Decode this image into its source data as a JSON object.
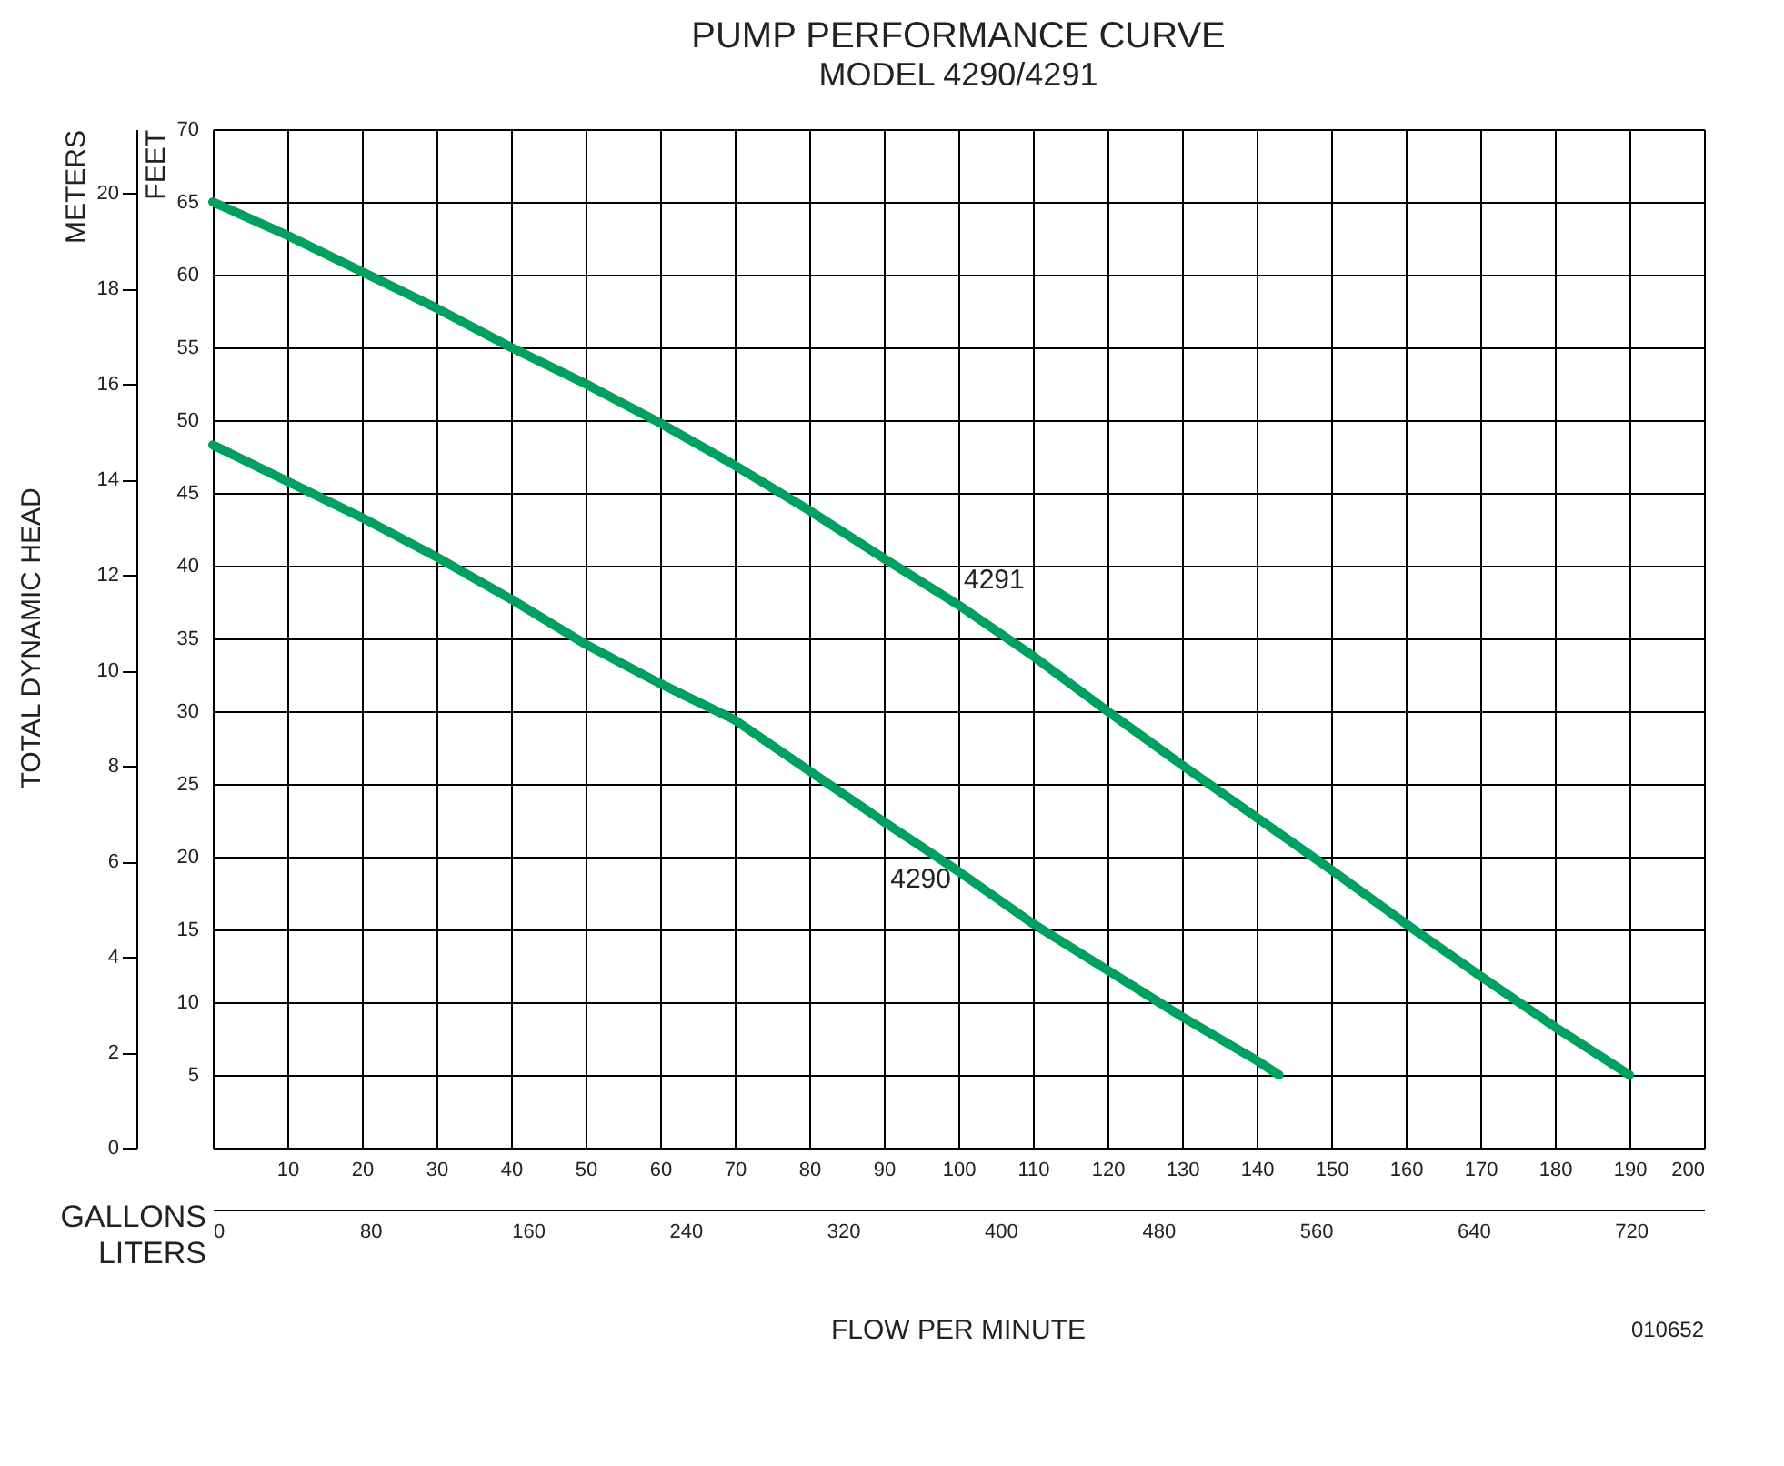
{
  "chart_data": {
    "type": "line",
    "title": "PUMP PERFORMANCE CURVE",
    "subtitle": "MODEL 4290/4291",
    "xlabel": "GALLONS",
    "x2label": "LITERS",
    "ylabel": "FEET",
    "y2label": "METERS",
    "annotations": [
      "TOTAL DYNAMIC HEAD",
      "FLOW PER MINUTE",
      "010652"
    ],
    "xlim": [
      0,
      200
    ],
    "xticks": [
      10,
      20,
      30,
      40,
      50,
      60,
      70,
      80,
      90,
      100,
      110,
      120,
      130,
      140,
      150,
      160,
      170,
      180,
      190,
      200
    ],
    "x2lim": [
      0,
      757.1
    ],
    "x2ticks": [
      0,
      80,
      160,
      240,
      320,
      400,
      480,
      560,
      640,
      720
    ],
    "ylim": [
      0,
      70
    ],
    "yticks": [
      5,
      10,
      15,
      20,
      25,
      30,
      35,
      40,
      45,
      50,
      55,
      60,
      65,
      70
    ],
    "y2lim": [
      0,
      21.34
    ],
    "y2ticks": [
      0,
      2,
      4,
      6,
      8,
      10,
      12,
      14,
      16,
      18,
      20
    ],
    "grid": true,
    "line_style": "solid",
    "marker": "none",
    "series": [
      {
        "name": "4290",
        "color": "#00a060",
        "x": [
          0,
          10,
          20,
          30,
          40,
          50,
          60,
          70,
          80,
          90,
          100,
          110,
          120,
          130,
          140,
          143
        ],
        "values": [
          48.3,
          45.8,
          43.3,
          40.6,
          37.7,
          34.6,
          31.9,
          29.4,
          25.9,
          22.4,
          19,
          15.4,
          12.2,
          9,
          6,
          5
        ]
      },
      {
        "name": "4291",
        "color": "#00a060",
        "x": [
          0,
          10,
          20,
          30,
          40,
          50,
          60,
          70,
          80,
          90,
          100,
          110,
          120,
          130,
          140,
          150,
          160,
          170,
          180,
          190
        ],
        "values": [
          65,
          62.7,
          60.2,
          57.7,
          55,
          52.5,
          49.8,
          46.9,
          43.8,
          40.5,
          37.3,
          33.8,
          30,
          26.3,
          22.7,
          19.1,
          15.4,
          11.8,
          8.3,
          5
        ]
      }
    ]
  }
}
